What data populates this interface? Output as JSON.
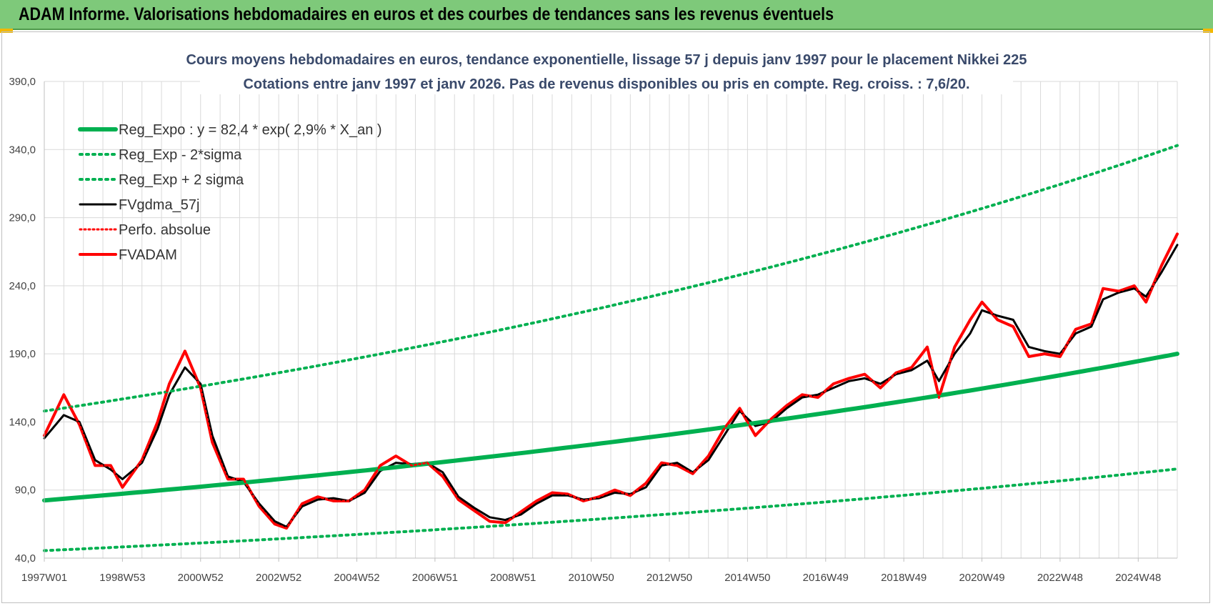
{
  "header": {
    "title": "ADAM Informe. Valorisations hebdomadaires en euros et des courbes de tendances sans les revenus éventuels"
  },
  "colors": {
    "banner": "#7ec97a",
    "reg_green": "#00b050",
    "black": "#000000",
    "red": "#ff0000",
    "grid": "#d9d9d9"
  },
  "chart_data": {
    "type": "line",
    "title": [
      "Cours moyens hebdomadaires en euros, tendance exponentielle, lissage 57 j depuis janv 1997 pour le placement Nikkei 225",
      "Cotations entre janv 1997 et janv 2026. Pas de revenus disponibles ou pris  en compte. Reg. croiss. : 7,6/20."
    ],
    "xlabel": "",
    "ylabel": "",
    "ylim": [
      40,
      390
    ],
    "yticks": [
      40,
      90,
      140,
      190,
      240,
      290,
      340,
      390
    ],
    "ytick_labels": [
      "40,0",
      "90,0",
      "140,0",
      "190,0",
      "240,0",
      "290,0",
      "340,0",
      "390,0"
    ],
    "xlim": [
      1997.0,
      2026.0
    ],
    "xticks": [
      1997.0,
      1999.0,
      2001.0,
      2003.0,
      2005.0,
      2007.0,
      2009.0,
      2011.0,
      2013.0,
      2015.0,
      2017.0,
      2019.0,
      2021.0,
      2023.0,
      2025.0
    ],
    "xtick_labels": [
      "1997W01",
      "1998W53",
      "2000W52",
      "2002W52",
      "2004W52",
      "2006W51",
      "2008W51",
      "2010W50",
      "2012W50",
      "2014W50",
      "2016W49",
      "2018W49",
      "2020W49",
      "2022W48",
      "2024W48"
    ],
    "grid": true,
    "legend_position": "top-left",
    "series": [
      {
        "name": "Reg_Expo : y = 82,4 * exp( 2,9% *  X_an )",
        "color": "#00b050",
        "style": "solid",
        "width": 6,
        "x": [
          1997.0,
          2026.0
        ],
        "y": [
          82.4,
          190.0
        ]
      },
      {
        "name": "Reg_Exp - 2*sigma",
        "color": "#00b050",
        "style": "dotted",
        "width": 4,
        "x": [
          1997.0,
          2026.0
        ],
        "y": [
          45.5,
          105.5
        ]
      },
      {
        "name": "Reg_Exp + 2 sigma",
        "color": "#00b050",
        "style": "dotted",
        "width": 4,
        "x": [
          1997.0,
          2026.0
        ],
        "y": [
          148.0,
          343.0
        ]
      },
      {
        "name": "FVgdma_57j",
        "color": "#000000",
        "style": "solid",
        "width": 3,
        "x": [
          1997.0,
          1997.5,
          1997.9,
          1998.3,
          1998.7,
          1999.0,
          1999.5,
          1999.9,
          2000.2,
          2000.6,
          2001.0,
          2001.3,
          2001.7,
          2002.1,
          2002.5,
          2002.9,
          2003.2,
          2003.6,
          2004.0,
          2004.4,
          2004.8,
          2005.2,
          2005.6,
          2006.0,
          2006.4,
          2006.8,
          2007.2,
          2007.6,
          2008.0,
          2008.4,
          2008.8,
          2009.2,
          2009.6,
          2010.0,
          2010.4,
          2010.8,
          2011.2,
          2011.6,
          2012.0,
          2012.4,
          2012.8,
          2013.2,
          2013.6,
          2014.0,
          2014.4,
          2014.8,
          2015.2,
          2015.6,
          2016.0,
          2016.4,
          2016.8,
          2017.2,
          2017.6,
          2018.0,
          2018.4,
          2018.8,
          2019.2,
          2019.6,
          2019.9,
          2020.3,
          2020.7,
          2021.0,
          2021.4,
          2021.8,
          2022.2,
          2022.6,
          2023.0,
          2023.4,
          2023.8,
          2024.1,
          2024.5,
          2024.9,
          2025.2,
          2025.6,
          2026.0
        ],
        "y": [
          128,
          145,
          140,
          112,
          105,
          98,
          110,
          135,
          160,
          180,
          168,
          130,
          100,
          96,
          80,
          67,
          63,
          78,
          83,
          84,
          82,
          88,
          104,
          110,
          109,
          110,
          103,
          85,
          77,
          70,
          68,
          72,
          80,
          86,
          86,
          83,
          84,
          88,
          87,
          92,
          108,
          110,
          103,
          112,
          130,
          148,
          137,
          140,
          150,
          158,
          160,
          165,
          170,
          172,
          168,
          175,
          178,
          185,
          170,
          190,
          205,
          222,
          218,
          215,
          195,
          192,
          190,
          205,
          210,
          230,
          235,
          238,
          232,
          250,
          270
        ]
      },
      {
        "name": "Perfo. absolue",
        "color": "#ff0000",
        "style": "dotted",
        "width": 3,
        "x": [
          1997.0,
          1997.5,
          1997.9,
          1998.3,
          1998.7,
          1999.0,
          1999.5,
          1999.9,
          2000.2,
          2000.6,
          2001.0,
          2001.3,
          2001.7,
          2002.1,
          2002.5,
          2002.9,
          2003.2,
          2003.6,
          2004.0,
          2004.4,
          2004.8,
          2005.2,
          2005.6,
          2006.0,
          2006.4,
          2006.8,
          2007.2,
          2007.6,
          2008.0,
          2008.4,
          2008.8,
          2009.2,
          2009.6,
          2010.0,
          2010.4,
          2010.8,
          2011.2,
          2011.6,
          2012.0,
          2012.4,
          2012.8,
          2013.2,
          2013.6,
          2014.0,
          2014.4,
          2014.8,
          2015.2,
          2015.6,
          2016.0,
          2016.4,
          2016.8,
          2017.2,
          2017.6,
          2018.0,
          2018.4,
          2018.8,
          2019.2,
          2019.6,
          2019.9,
          2020.3,
          2020.7,
          2021.0,
          2021.4,
          2021.8,
          2022.2,
          2022.6,
          2023.0,
          2023.4,
          2023.8,
          2024.1,
          2024.5,
          2024.9,
          2025.2,
          2025.6,
          2026.0
        ],
        "y": [
          130,
          160,
          138,
          108,
          108,
          92,
          112,
          140,
          168,
          192,
          165,
          125,
          98,
          98,
          78,
          65,
          62,
          80,
          85,
          82,
          82,
          90,
          108,
          115,
          108,
          110,
          100,
          83,
          75,
          67,
          66,
          74,
          82,
          88,
          87,
          82,
          85,
          90,
          86,
          95,
          110,
          108,
          102,
          115,
          135,
          150,
          130,
          142,
          152,
          160,
          158,
          168,
          172,
          175,
          165,
          176,
          180,
          195,
          158,
          195,
          215,
          228,
          215,
          210,
          188,
          190,
          188,
          208,
          212,
          238,
          236,
          240,
          228,
          255,
          278
        ]
      },
      {
        "name": "FVADAM",
        "color": "#ff0000",
        "style": "solid",
        "width": 4,
        "x": [
          1997.0,
          1997.5,
          1997.9,
          1998.3,
          1998.7,
          1999.0,
          1999.5,
          1999.9,
          2000.2,
          2000.6,
          2001.0,
          2001.3,
          2001.7,
          2002.1,
          2002.5,
          2002.9,
          2003.2,
          2003.6,
          2004.0,
          2004.4,
          2004.8,
          2005.2,
          2005.6,
          2006.0,
          2006.4,
          2006.8,
          2007.2,
          2007.6,
          2008.0,
          2008.4,
          2008.8,
          2009.2,
          2009.6,
          2010.0,
          2010.4,
          2010.8,
          2011.2,
          2011.6,
          2012.0,
          2012.4,
          2012.8,
          2013.2,
          2013.6,
          2014.0,
          2014.4,
          2014.8,
          2015.2,
          2015.6,
          2016.0,
          2016.4,
          2016.8,
          2017.2,
          2017.6,
          2018.0,
          2018.4,
          2018.8,
          2019.2,
          2019.6,
          2019.9,
          2020.3,
          2020.7,
          2021.0,
          2021.4,
          2021.8,
          2022.2,
          2022.6,
          2023.0,
          2023.4,
          2023.8,
          2024.1,
          2024.5,
          2024.9,
          2025.2,
          2025.6,
          2026.0
        ],
        "y": [
          130,
          160,
          138,
          108,
          108,
          92,
          112,
          140,
          168,
          192,
          165,
          125,
          98,
          98,
          78,
          65,
          62,
          80,
          85,
          82,
          82,
          90,
          108,
          115,
          108,
          110,
          100,
          83,
          75,
          67,
          66,
          74,
          82,
          88,
          87,
          82,
          85,
          90,
          86,
          95,
          110,
          108,
          102,
          115,
          135,
          150,
          130,
          142,
          152,
          160,
          158,
          168,
          172,
          175,
          165,
          176,
          180,
          195,
          158,
          195,
          215,
          228,
          215,
          210,
          188,
          190,
          188,
          208,
          212,
          238,
          236,
          240,
          228,
          255,
          278
        ]
      }
    ]
  }
}
